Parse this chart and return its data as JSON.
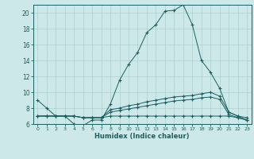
{
  "xlabel": "Humidex (Indice chaleur)",
  "background_color": "#cde8e8",
  "grid_color": "#aecfcf",
  "line_color": "#1a6060",
  "xlim": [
    -0.5,
    23.5
  ],
  "ylim": [
    6,
    21
  ],
  "yticks": [
    6,
    8,
    10,
    12,
    14,
    16,
    18,
    20
  ],
  "xticks": [
    0,
    1,
    2,
    3,
    4,
    5,
    6,
    7,
    8,
    9,
    10,
    11,
    12,
    13,
    14,
    15,
    16,
    17,
    18,
    19,
    20,
    21,
    22,
    23
  ],
  "xtick_labels": [
    "0",
    "1",
    "2",
    "3",
    "4",
    "5",
    "6",
    "7",
    "8",
    "9",
    "10",
    "11",
    "12",
    "13",
    "14",
    "15",
    "16",
    "17",
    "18",
    "19",
    "20",
    "21",
    "22",
    "23"
  ],
  "series1_x": [
    0,
    1,
    2,
    3,
    4,
    5,
    6,
    7,
    8,
    9,
    10,
    11,
    12,
    13,
    14,
    15,
    16,
    17,
    18,
    19,
    20,
    21,
    22,
    23
  ],
  "series1_y": [
    9.0,
    8.0,
    7.0,
    7.0,
    6.0,
    5.8,
    6.5,
    6.5,
    8.5,
    11.5,
    13.5,
    15.0,
    17.5,
    18.5,
    20.2,
    20.3,
    21.0,
    18.5,
    14.0,
    12.5,
    10.5,
    7.5,
    7.0,
    6.5
  ],
  "series2_x": [
    0,
    1,
    2,
    3,
    4,
    5,
    6,
    7,
    8,
    9,
    10,
    11,
    12,
    13,
    14,
    15,
    16,
    17,
    18,
    19,
    20,
    21,
    22,
    23
  ],
  "series2_y": [
    7.0,
    7.0,
    7.0,
    7.0,
    7.0,
    6.8,
    6.8,
    6.8,
    7.8,
    8.0,
    8.3,
    8.5,
    8.8,
    9.0,
    9.2,
    9.4,
    9.5,
    9.6,
    9.8,
    10.0,
    9.5,
    7.5,
    7.0,
    6.8
  ],
  "series3_x": [
    0,
    1,
    2,
    3,
    4,
    5,
    6,
    7,
    8,
    9,
    10,
    11,
    12,
    13,
    14,
    15,
    16,
    17,
    18,
    19,
    20,
    21,
    22,
    23
  ],
  "series3_y": [
    7.0,
    7.0,
    7.0,
    7.0,
    7.0,
    6.8,
    6.8,
    6.8,
    7.5,
    7.7,
    7.9,
    8.1,
    8.3,
    8.5,
    8.7,
    8.9,
    9.0,
    9.1,
    9.3,
    9.4,
    9.1,
    7.2,
    6.8,
    6.5
  ],
  "series4_x": [
    0,
    1,
    2,
    3,
    4,
    5,
    6,
    7,
    8,
    9,
    10,
    11,
    12,
    13,
    14,
    15,
    16,
    17,
    18,
    19,
    20,
    21,
    22,
    23
  ],
  "series4_y": [
    7.0,
    7.0,
    7.0,
    7.0,
    7.0,
    6.8,
    6.8,
    6.8,
    7.0,
    7.0,
    7.0,
    7.0,
    7.0,
    7.0,
    7.0,
    7.0,
    7.0,
    7.0,
    7.0,
    7.0,
    7.0,
    7.0,
    6.8,
    6.5
  ]
}
